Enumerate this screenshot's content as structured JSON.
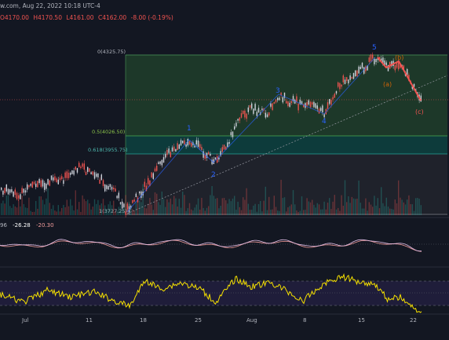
{
  "header": {
    "source_fragment": "w.com, Aug 22, 2022 10:18 UTC-4",
    "open": "O4170.00",
    "high": "H4170.50",
    "low": "L4161.00",
    "close": "C4162.00",
    "change": "-8.00 (-0.19%)"
  },
  "fib_levels": {
    "level_0": "0(4325.75)",
    "level_05": "0.5(4026.50)",
    "level_0618": "0.618(3955.75)",
    "level_1": "1(3727.25)"
  },
  "waves": {
    "w1": "1",
    "w2": "2",
    "w3": "3",
    "w4": "4",
    "w5": "5",
    "wa": "(a)",
    "wb": "(b)",
    "wc": "(c)"
  },
  "oscillator": {
    "v1": "96",
    "v2": "-26.28",
    "v3": "-20.30"
  },
  "x_axis": [
    "Jul",
    "11",
    "18",
    "25",
    "Aug",
    "8",
    "15",
    "22"
  ],
  "colors": {
    "background": "#131722",
    "fib_top_zone": "#1e3a2a",
    "fib_golden_zone": "#0d3b3b",
    "up_candle": "#d0d3dc",
    "down_candle": "#ef5350",
    "wave_blue": "#2962ff",
    "wave_red": "#ef5350",
    "osc_line": "#f5e000",
    "osc_band": "#1f1d3a"
  }
}
